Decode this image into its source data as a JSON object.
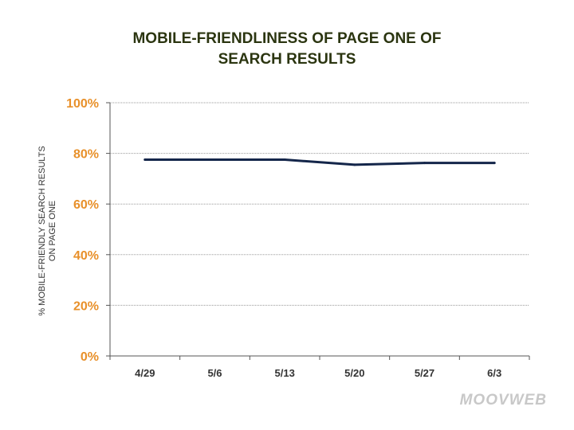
{
  "chart_data": {
    "type": "line",
    "title_lines": [
      "MOBILE-FRIENDLINESS OF PAGE ONE OF",
      "SEARCH RESULTS"
    ],
    "ylabel_lines": [
      "% MOBILE-FRIENDLY SEARCH RESULTS",
      "ON PAGE ONE"
    ],
    "xlabel": "",
    "categories": [
      "4/29",
      "5/6",
      "5/13",
      "5/20",
      "5/27",
      "6/3"
    ],
    "y_ticks": [
      "0%",
      "20%",
      "40%",
      "60%",
      "80%",
      "100%"
    ],
    "ylim": [
      0,
      100
    ],
    "grid": true,
    "series": [
      {
        "values": [
          77.5,
          77.5,
          77.5,
          75.5,
          76.2,
          76.2
        ]
      }
    ],
    "colors": {
      "line": "#14264a",
      "ytick": "#e8902a",
      "title": "#2b3510",
      "grid": "#9a9a9a"
    }
  },
  "watermark": "MOOVWEB"
}
